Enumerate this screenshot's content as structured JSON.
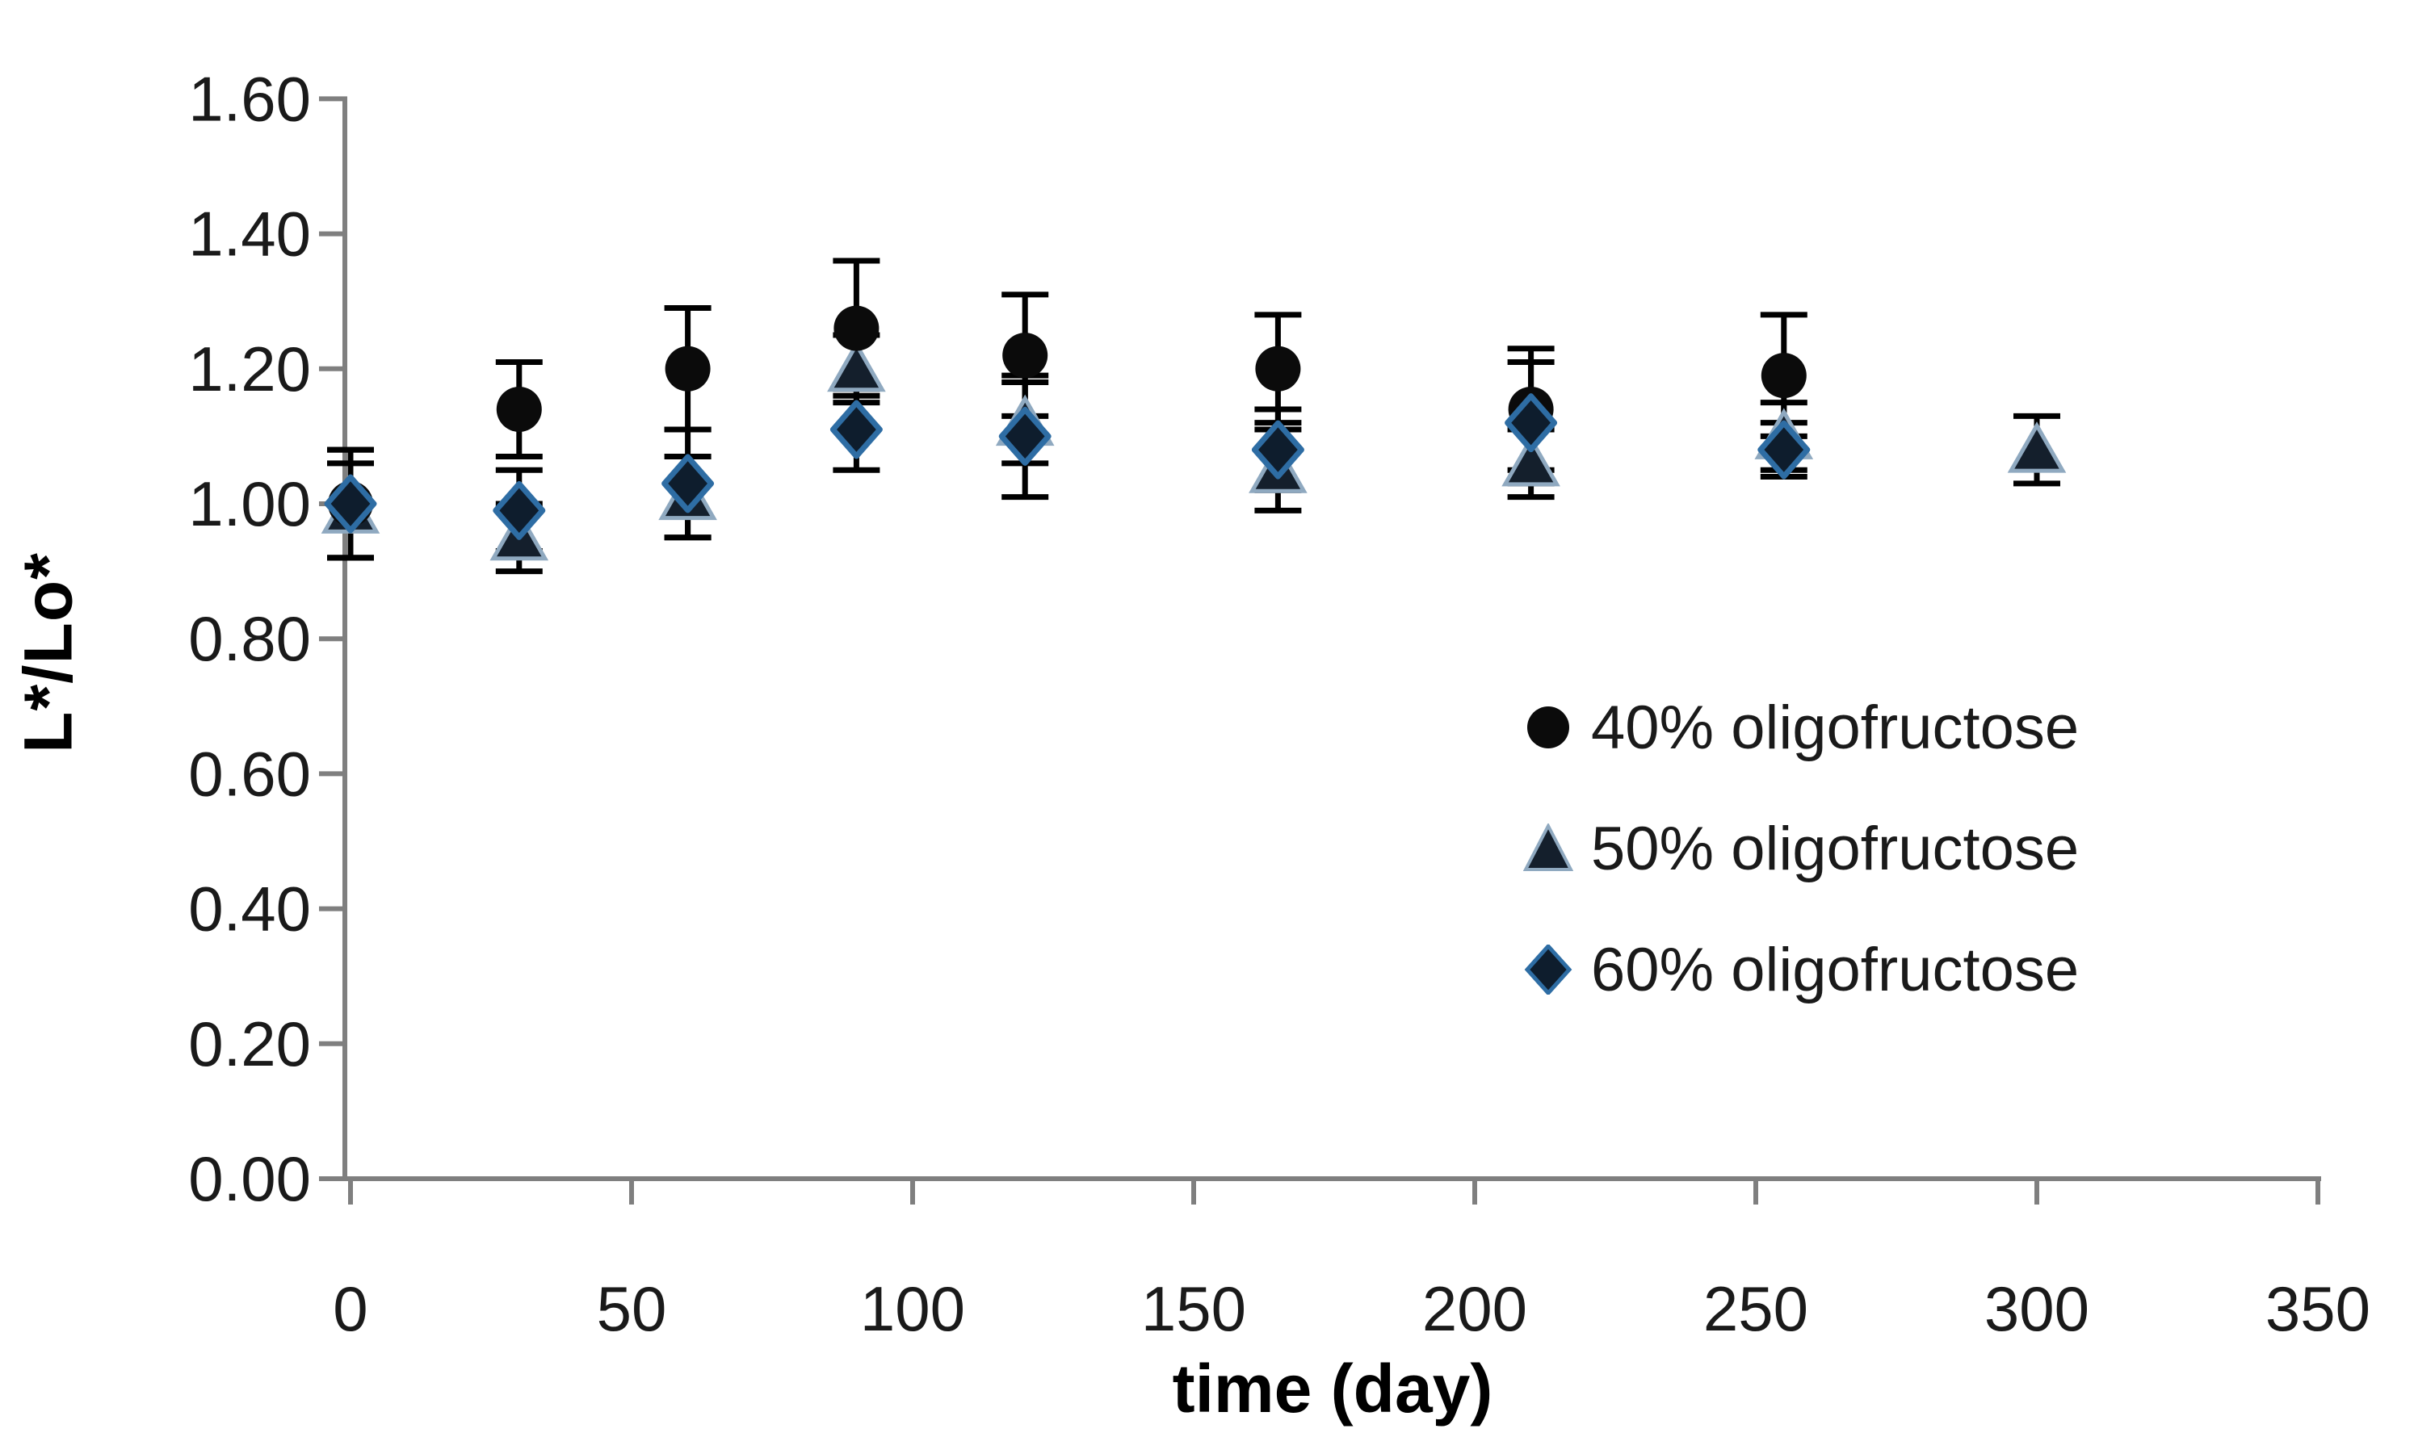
{
  "chart_data": {
    "type": "scatter",
    "title": "",
    "xlabel": "time (day)",
    "ylabel": "L*/Lo*",
    "xlim": [
      0,
      350
    ],
    "ylim": [
      0.0,
      1.6
    ],
    "x_tick_values": [
      0,
      50,
      100,
      150,
      200,
      250,
      300,
      350
    ],
    "x_tick_labels": [
      "0",
      "50",
      "100",
      "150",
      "200",
      "250",
      "300",
      "350"
    ],
    "y_tick_values": [
      0.0,
      0.2,
      0.4,
      0.6,
      0.8,
      1.0,
      1.2,
      1.4,
      1.6
    ],
    "y_tick_labels": [
      "0.00",
      "0.20",
      "0.40",
      "0.60",
      "0.80",
      "1.00",
      "1.20",
      "1.40",
      "1.60"
    ],
    "grid": false,
    "legend_position": "right-middle",
    "axis_color": "#7f7f7f",
    "error_bar_color": "#000000",
    "series": [
      {
        "name": "40% oligofructose",
        "marker": "circle",
        "fill": "#0b0b0b",
        "stroke": "#0b0b0b",
        "points": [
          {
            "x": 0,
            "y": 1.0,
            "err": 0.08
          },
          {
            "x": 30,
            "y": 1.14,
            "err": 0.07
          },
          {
            "x": 60,
            "y": 1.2,
            "err": 0.09
          },
          {
            "x": 90,
            "y": 1.26,
            "err": 0.1
          },
          {
            "x": 120,
            "y": 1.22,
            "err": 0.09
          },
          {
            "x": 165,
            "y": 1.2,
            "err": 0.08
          },
          {
            "x": 210,
            "y": 1.14,
            "err": 0.09
          },
          {
            "x": 255,
            "y": 1.19,
            "err": 0.09
          }
        ]
      },
      {
        "name": "50% oligofructose",
        "marker": "triangle",
        "fill": "#141f2c",
        "stroke": "#8fa9c0",
        "points": [
          {
            "x": 0,
            "y": 0.99,
            "err": 0.07
          },
          {
            "x": 30,
            "y": 0.95,
            "err": 0.05
          },
          {
            "x": 60,
            "y": 1.01,
            "err": 0.06
          },
          {
            "x": 90,
            "y": 1.2,
            "err": 0.05
          },
          {
            "x": 120,
            "y": 1.12,
            "err": 0.06
          },
          {
            "x": 165,
            "y": 1.05,
            "err": 0.06
          },
          {
            "x": 210,
            "y": 1.06,
            "err": 0.05
          },
          {
            "x": 255,
            "y": 1.1,
            "err": 0.05
          },
          {
            "x": 300,
            "y": 1.08,
            "err": 0.05
          }
        ]
      },
      {
        "name": "60% oligofructose",
        "marker": "diamond",
        "fill": "#0e1d2d",
        "stroke": "#2e6da4",
        "points": [
          {
            "x": 0,
            "y": 1.0,
            "err": 0.08
          },
          {
            "x": 30,
            "y": 0.99,
            "err": 0.06
          },
          {
            "x": 60,
            "y": 1.03,
            "err": 0.08
          },
          {
            "x": 90,
            "y": 1.11,
            "err": 0.06
          },
          {
            "x": 120,
            "y": 1.1,
            "err": 0.09
          },
          {
            "x": 165,
            "y": 1.08,
            "err": 0.06
          },
          {
            "x": 210,
            "y": 1.12,
            "err": 0.09
          },
          {
            "x": 255,
            "y": 1.08,
            "err": 0.04
          }
        ]
      }
    ]
  }
}
